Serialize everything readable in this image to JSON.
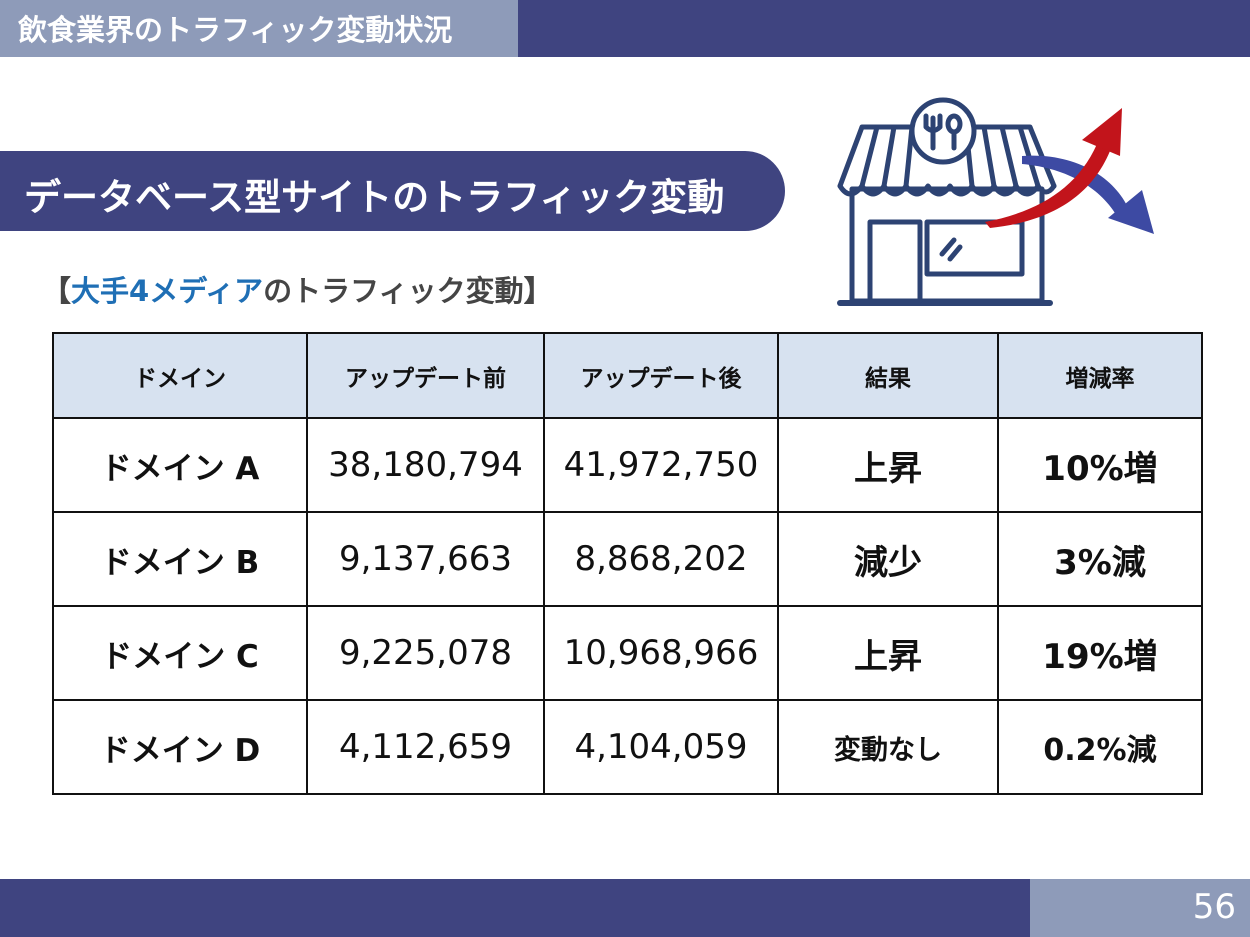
{
  "header": {
    "title": "飲食業界のトラフィック変動状況"
  },
  "section": {
    "title": "データベース型サイトのトラフィック変動"
  },
  "subheading": {
    "open_bracket": "【",
    "highlight": "大手4メディア",
    "rest": "のトラフィック変動",
    "close_bracket": "】"
  },
  "table": {
    "columns": [
      "ドメイン",
      "アップデート前",
      "アップデート後",
      "結果",
      "増減率"
    ],
    "rows": [
      {
        "domain": "ドメイン A",
        "before": "38,180,794",
        "after": "41,972,750",
        "result": "上昇",
        "rate": "10%増",
        "trend": "up"
      },
      {
        "domain": "ドメイン B",
        "before": "9,137,663",
        "after": "8,868,202",
        "result": "減少",
        "rate": "3%減",
        "trend": "down"
      },
      {
        "domain": "ドメイン C",
        "before": "9,225,078",
        "after": "10,968,966",
        "result": "上昇",
        "rate": "19%増",
        "trend": "up"
      },
      {
        "domain": "ドメイン D",
        "before": "4,112,659",
        "after": "4,104,059",
        "result": "変動なし",
        "rate": "0.2%減",
        "trend": "flat"
      }
    ]
  },
  "colors": {
    "navy": "#3f4480",
    "slate": "#8e9bb9",
    "header_cell": "#d7e2f0",
    "increase": "#c2141b",
    "decrease": "#1b1f8a",
    "highlight": "#1f6fb5"
  },
  "icons": {
    "illustration": "restaurant-storefront-icon",
    "up_arrow": "trend-up-arrow-icon",
    "down_arrow": "trend-down-arrow-icon"
  },
  "footer": {
    "page_number": "56"
  }
}
